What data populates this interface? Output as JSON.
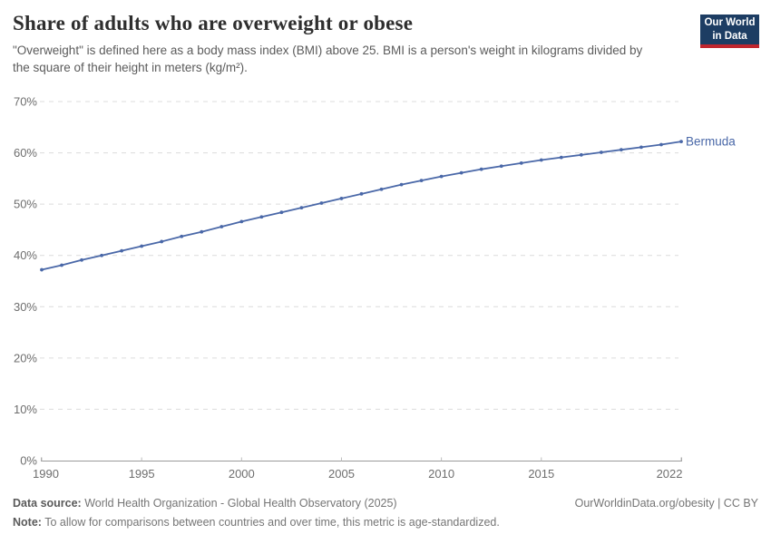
{
  "header": {
    "title": "Share of adults who are overweight or obese",
    "subtitle": "\"Overweight\" is defined here as a body mass index (BMI) above 25. BMI is a person's weight in kilograms divided by the square of their height in meters (kg/m²).",
    "logo": {
      "line1": "Our World",
      "line2": "in Data"
    }
  },
  "chart_data": {
    "type": "line",
    "title": "Share of adults who are overweight or obese",
    "entity": "Bermuda",
    "xlabel": "",
    "ylabel": "",
    "xlim": [
      1990,
      2022
    ],
    "ylim": [
      0,
      70
    ],
    "xticks": [
      1990,
      1995,
      2000,
      2005,
      2010,
      2015,
      2022
    ],
    "yticks": [
      0,
      10,
      20,
      30,
      40,
      50,
      60,
      70
    ],
    "ytick_suffix": "%",
    "grid": "horizontal-dashed",
    "legend_position": "end-of-line-label",
    "line_color": "#4a68a8",
    "x": [
      1990,
      1991,
      1992,
      1993,
      1994,
      1995,
      1996,
      1997,
      1998,
      1999,
      2000,
      2001,
      2002,
      2003,
      2004,
      2005,
      2006,
      2007,
      2008,
      2009,
      2010,
      2011,
      2012,
      2013,
      2014,
      2015,
      2016,
      2017,
      2018,
      2019,
      2020,
      2021,
      2022
    ],
    "series": [
      {
        "name": "Bermuda",
        "values": [
          37.2,
          38.1,
          39.1,
          40.0,
          40.9,
          41.8,
          42.7,
          43.7,
          44.6,
          45.6,
          46.6,
          47.5,
          48.4,
          49.3,
          50.2,
          51.1,
          52.0,
          52.9,
          53.8,
          54.6,
          55.4,
          56.1,
          56.8,
          57.4,
          58.0,
          58.6,
          59.1,
          59.6,
          60.1,
          60.6,
          61.1,
          61.6,
          62.2
        ]
      }
    ]
  },
  "footer": {
    "data_source_label": "Data source:",
    "data_source_value": "World Health Organization - Global Health Observatory (2025)",
    "link": "OurWorldinData.org/obesity | CC BY",
    "note_label": "Note:",
    "note_value": "To allow for comparisons between countries and over time, this metric is age-standardized."
  },
  "colors": {
    "accent_line": "#4a68a8",
    "grid": "#dcdcdc",
    "axis": "#9a9a9a",
    "tick": "#bdbdbd",
    "tick_text": "#6e6e6e",
    "logo_bg": "#1d3d63",
    "logo_stripe": "#c0262e"
  }
}
